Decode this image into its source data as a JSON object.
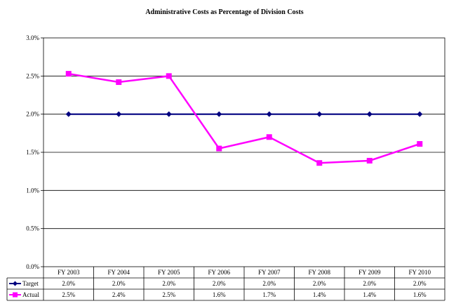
{
  "chart_data": {
    "type": "line",
    "title": "Administrative Costs as Percentage of Division Costs",
    "categories": [
      "FY 2003",
      "FY 2004",
      "FY 2005",
      "FY 2006",
      "FY 2007",
      "FY 2008",
      "FY 2009",
      "FY 2010"
    ],
    "ylim": [
      0.0,
      3.0
    ],
    "yticks": [
      "0.0%",
      "0.5%",
      "1.0%",
      "1.5%",
      "2.0%",
      "2.5%",
      "3.0%"
    ],
    "grid": true,
    "legend_placement": "table-below",
    "series": [
      {
        "name": "Target",
        "color": "#000080",
        "marker": "diamond",
        "values": [
          2.0,
          2.0,
          2.0,
          2.0,
          2.0,
          2.0,
          2.0,
          2.0
        ],
        "labels": [
          "2.0%",
          "2.0%",
          "2.0%",
          "2.0%",
          "2.0%",
          "2.0%",
          "2.0%",
          "2.0%"
        ]
      },
      {
        "name": "Actual",
        "color": "#ff00ff",
        "marker": "square",
        "values": [
          2.53,
          2.42,
          2.5,
          1.55,
          1.7,
          1.36,
          1.39,
          1.61
        ],
        "labels": [
          "2.5%",
          "2.4%",
          "2.5%",
          "1.6%",
          "1.7%",
          "1.4%",
          "1.4%",
          "1.6%"
        ]
      }
    ]
  }
}
